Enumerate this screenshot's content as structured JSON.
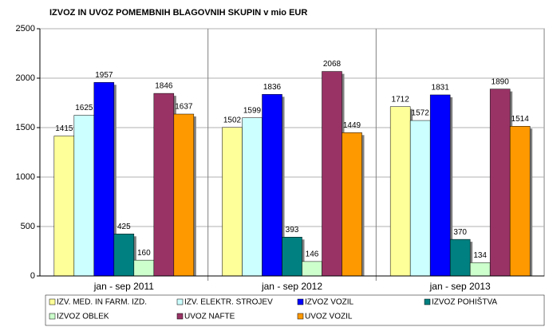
{
  "chart_data": {
    "type": "bar",
    "title": "IZVOZ IN UVOZ POMEMBNIH BLAGOVNIH SKUPIN v mio EUR",
    "categories": [
      "jan - sep 2011",
      "jan - sep 2012",
      "jan - sep 2013"
    ],
    "series": [
      {
        "name": "IZV. MED. IN FARM. IZD.",
        "color": "#ffff99",
        "values": [
          1415,
          1502,
          1712
        ]
      },
      {
        "name": "IZV. ELEKTR. STROJEV",
        "color": "#ccffff",
        "values": [
          1625,
          1599,
          1572
        ]
      },
      {
        "name": "IZVOZ VOZIL",
        "color": "#0000ff",
        "values": [
          1957,
          1836,
          1831
        ]
      },
      {
        "name": "IZVOZ POHIŠTVA",
        "color": "#008080",
        "values": [
          425,
          393,
          370
        ]
      },
      {
        "name": "IZVOZ OBLEK",
        "color": "#ccffcc",
        "values": [
          160,
          146,
          134
        ]
      },
      {
        "name": "UVOZ NAFTE",
        "color": "#993366",
        "values": [
          1846,
          2068,
          1890
        ]
      },
      {
        "name": "UVOZ VOZIL",
        "color": "#ff9900",
        "values": [
          1637,
          1449,
          1514
        ]
      }
    ],
    "ylim": [
      0,
      2500
    ],
    "yticks": [
      0,
      500,
      1000,
      1500,
      2000,
      2500
    ],
    "grid": true
  }
}
